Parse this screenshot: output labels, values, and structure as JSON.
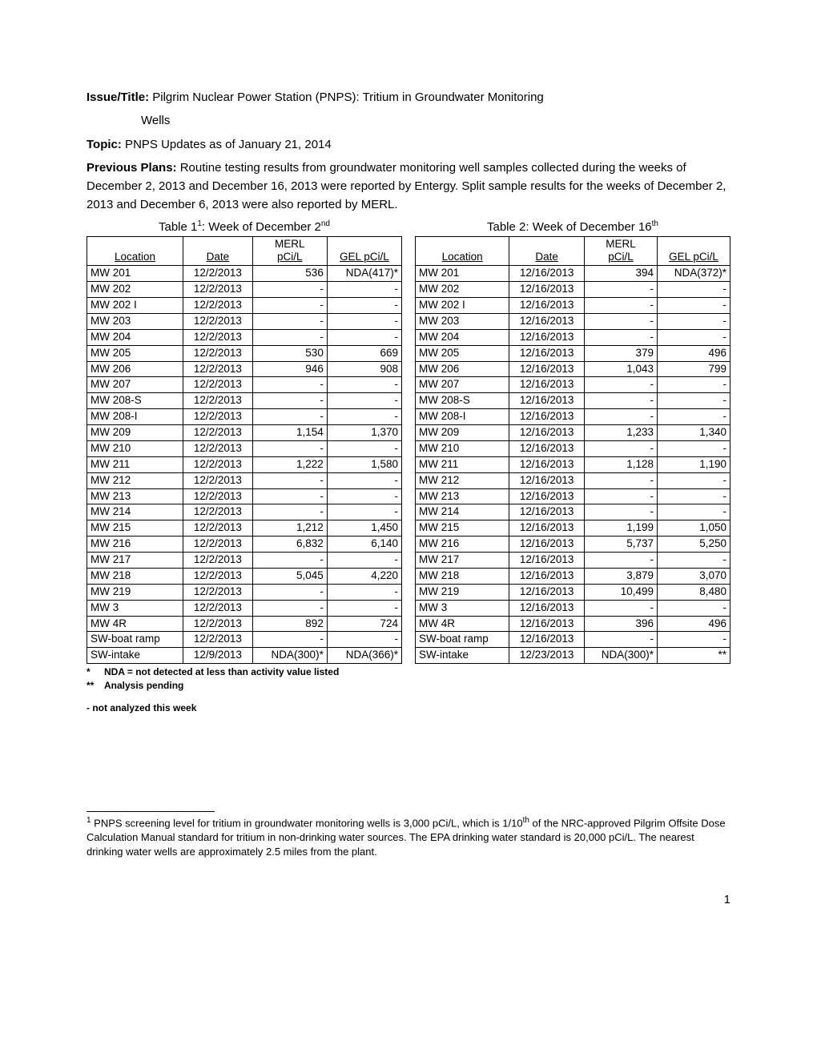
{
  "header": {
    "issue_label": "Issue/Title:",
    "issue_text_line1": " Pilgrim Nuclear Power Station (PNPS): Tritium in Groundwater Monitoring",
    "issue_text_line2": "Wells",
    "topic_label": "Topic:",
    "topic_text": " PNPS Updates as of January 21, 2014",
    "prev_label": "Previous Plans:",
    "prev_text": " Routine testing results from groundwater monitoring well samples collected during the weeks of December 2, 2013 and December 16, 2013 were reported by Entergy.  Split sample results for the weeks of December 2, 2013 and December 6, 2013 were also reported by MERL."
  },
  "table1": {
    "title_prefix": "Table 1",
    "title_sup": "1",
    "title_mid": ":  Week of December 2",
    "title_suf": "nd",
    "columns": [
      "Location",
      "Date",
      "MERL pCi/L",
      "GEL  pCi/L"
    ],
    "rows": [
      [
        "MW 201",
        "12/2/2013",
        "536",
        "NDA(417)*"
      ],
      [
        "MW 202",
        "12/2/2013",
        "-",
        "-"
      ],
      [
        "MW 202 I",
        "12/2/2013",
        "-",
        "-"
      ],
      [
        "MW 203",
        "12/2/2013",
        "-",
        "-"
      ],
      [
        "MW 204",
        "12/2/2013",
        "-",
        "-"
      ],
      [
        "MW 205",
        "12/2/2013",
        "530",
        "669"
      ],
      [
        "MW 206",
        "12/2/2013",
        "946",
        "908"
      ],
      [
        "MW 207",
        "12/2/2013",
        "-",
        "-"
      ],
      [
        "MW 208-S",
        "12/2/2013",
        "-",
        "-"
      ],
      [
        "MW 208-I",
        "12/2/2013",
        "-",
        "-"
      ],
      [
        "MW 209",
        "12/2/2013",
        "1,154",
        "1,370"
      ],
      [
        "MW 210",
        "12/2/2013",
        "-",
        "-"
      ],
      [
        "MW 211",
        "12/2/2013",
        "1,222",
        "1,580"
      ],
      [
        "MW 212",
        "12/2/2013",
        "-",
        "-"
      ],
      [
        "MW 213",
        "12/2/2013",
        "-",
        "-"
      ],
      [
        "MW 214",
        "12/2/2013",
        "-",
        "-"
      ],
      [
        "MW 215",
        "12/2/2013",
        "1,212",
        "1,450"
      ],
      [
        "MW 216",
        "12/2/2013",
        "6,832",
        "6,140"
      ],
      [
        "MW 217",
        "12/2/2013",
        "-",
        "-"
      ],
      [
        "MW 218",
        "12/2/2013",
        "5,045",
        "4,220"
      ],
      [
        "MW 219",
        "12/2/2013",
        "-",
        "-"
      ],
      [
        "MW 3",
        "12/2/2013",
        "-",
        "-"
      ],
      [
        "MW 4R",
        "12/2/2013",
        "892",
        "724"
      ],
      [
        "SW-boat ramp",
        "12/2/2013",
        "-",
        "-"
      ],
      [
        "SW-intake",
        "12/9/2013",
        "NDA(300)*",
        "NDA(366)*"
      ]
    ]
  },
  "table2": {
    "title_prefix": "Table 2:  Week of December 16",
    "title_suf": "th",
    "columns": [
      "Location",
      "Date",
      "MERL pCi/L",
      "GEL  pCi/L"
    ],
    "rows": [
      [
        "MW 201",
        "12/16/2013",
        "394",
        "NDA(372)*"
      ],
      [
        "MW 202",
        "12/16/2013",
        "-",
        "-"
      ],
      [
        "MW 202 I",
        "12/16/2013",
        "-",
        "-"
      ],
      [
        "MW 203",
        "12/16/2013",
        "-",
        "-"
      ],
      [
        "MW 204",
        "12/16/2013",
        "-",
        "-"
      ],
      [
        "MW 205",
        "12/16/2013",
        "379",
        "496"
      ],
      [
        "MW 206",
        "12/16/2013",
        "1,043",
        "799"
      ],
      [
        "MW 207",
        "12/16/2013",
        "-",
        "-"
      ],
      [
        "MW 208-S",
        "12/16/2013",
        "-",
        "-"
      ],
      [
        "MW 208-I",
        "12/16/2013",
        "-",
        "-"
      ],
      [
        "MW 209",
        "12/16/2013",
        "1,233",
        "1,340"
      ],
      [
        "MW 210",
        "12/16/2013",
        "-",
        "-"
      ],
      [
        "MW 211",
        "12/16/2013",
        "1,128",
        "1,190"
      ],
      [
        "MW 212",
        "12/16/2013",
        "-",
        "-"
      ],
      [
        "MW 213",
        "12/16/2013",
        "-",
        "-"
      ],
      [
        "MW 214",
        "12/16/2013",
        "-",
        "-"
      ],
      [
        "MW 215",
        "12/16/2013",
        "1,199",
        "1,050"
      ],
      [
        "MW 216",
        "12/16/2013",
        "5,737",
        "5,250"
      ],
      [
        "MW 217",
        "12/16/2013",
        "-",
        "-"
      ],
      [
        "MW 218",
        "12/16/2013",
        "3,879",
        "3,070"
      ],
      [
        "MW 219",
        "12/16/2013",
        "10,499",
        "8,480"
      ],
      [
        "MW 3",
        "12/16/2013",
        "-",
        "-"
      ],
      [
        "MW 4R",
        "12/16/2013",
        "396",
        "496"
      ],
      [
        "SW-boat ramp",
        "12/16/2013",
        "-",
        "-"
      ],
      [
        "SW-intake",
        "12/23/2013",
        "NDA(300)*",
        "**"
      ]
    ]
  },
  "footnotes": {
    "star": "NDA = not detected at less than activity value listed",
    "dstar": "Analysis pending",
    "dash": "-  not analyzed this week"
  },
  "endnote": {
    "sup": "1",
    "text": " PNPS screening level for tritium in groundwater monitoring wells is 3,000 pCi/L, which is 1/10",
    "sup2": "th",
    "text2": " of the NRC-approved Pilgrim Offsite Dose Calculation Manual standard for tritium in non-drinking water sources. The EPA drinking water standard is 20,000 pCi/L. The nearest drinking water wells are approximately 2.5 miles from the plant."
  },
  "page_number": "1"
}
